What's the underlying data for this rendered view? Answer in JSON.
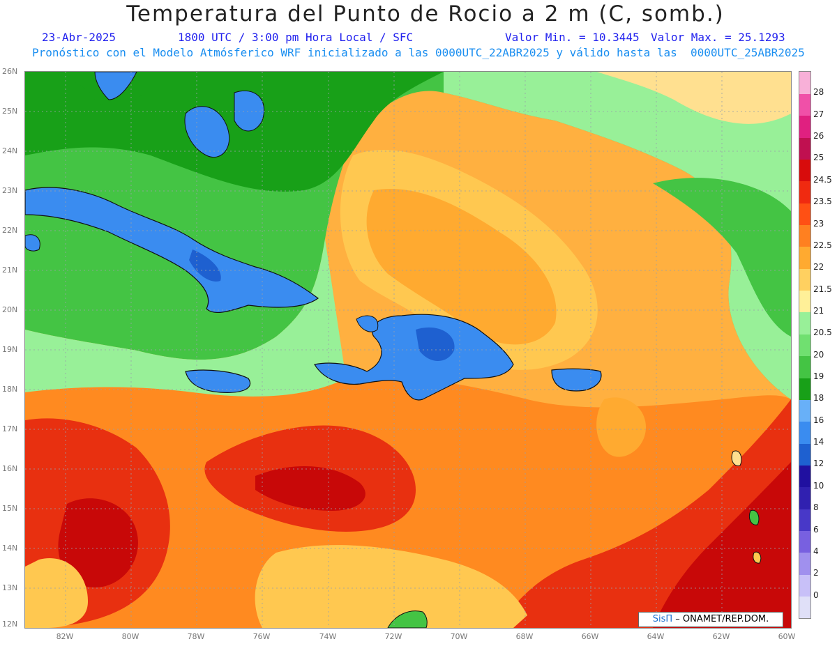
{
  "header": {
    "title": "Temperatura del Punto de Rocio a 2 m (C, somb.)",
    "date": "23-Abr-2025",
    "time": "1800 UTC / 3:00 pm Hora Local / SFC",
    "min": "Valor Min. = 10.3445",
    "max": "Valor Max. = 25.1293",
    "model": "Pronóstico con el Modelo Atmósferico WRF inicializado a las 0000UTC_22ABR2025 y válido hasta las  0000UTC_25ABR2025"
  },
  "lat_labels": [
    "26N",
    "25N",
    "24N",
    "23N",
    "22N",
    "21N",
    "20N",
    "19N",
    "18N",
    "17N",
    "16N",
    "15N",
    "14N",
    "13N",
    "12N"
  ],
  "lon_labels": [
    "82W",
    "80W",
    "78W",
    "76W",
    "74W",
    "72W",
    "70W",
    "68W",
    "66W",
    "64W",
    "62W",
    "60W"
  ],
  "legend": {
    "levels": [
      "0",
      "2",
      "4",
      "6",
      "8",
      "10",
      "12",
      "14",
      "16",
      "18",
      "19",
      "20",
      "20.5",
      "21",
      "21.5",
      "22",
      "22.5",
      "23",
      "23.5",
      "24.5",
      "25",
      "26",
      "27",
      "28"
    ],
    "colors": [
      "#e0e0f8",
      "#c8c0f8",
      "#a090ee",
      "#7860e0",
      "#4838c8",
      "#3020b0",
      "#2010a0",
      "#1e60d0",
      "#3a8cf0",
      "#68b0f8",
      "#18a018",
      "#44c444",
      "#70e070",
      "#98f098",
      "#fff098",
      "#ffd060",
      "#ffaa30",
      "#ff8020",
      "#ff5014",
      "#f02a10",
      "#d80c0c",
      "#c01050",
      "#e02080",
      "#f050a8",
      "#f8b0d8"
    ]
  },
  "regions": {
    "colors": {
      "water_deep": "#c80808",
      "water_mid": "#e83010",
      "water_orange": "#ff8a20",
      "water_yellow": "#ffc850",
      "water_light": "#ffe090",
      "green_light": "#98f098",
      "green": "#44c444",
      "green_dark": "#18a018",
      "land_blue": "#3a8cf0",
      "land_deep": "#1e60d0"
    }
  },
  "credit": {
    "brand": "SisΠ",
    "text": "– ONAMET/REP.DOM."
  }
}
